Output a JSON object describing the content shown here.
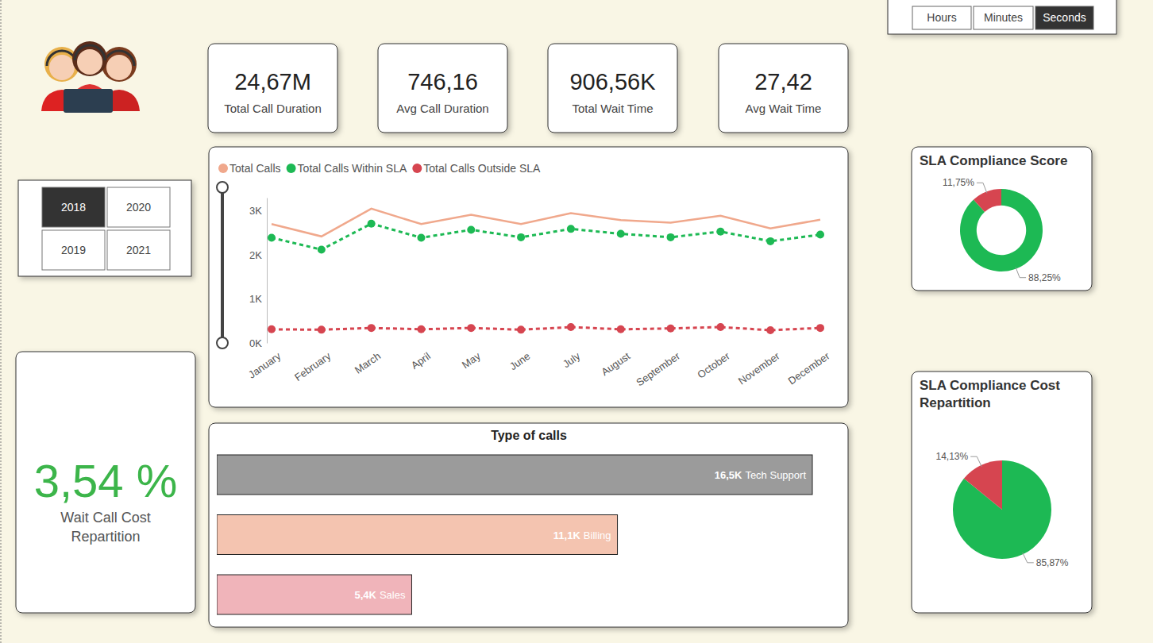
{
  "unit_buttons": {
    "options": [
      "Hours",
      "Minutes",
      "Seconds"
    ],
    "selected": "Seconds"
  },
  "year_slicer": {
    "options": [
      "2018",
      "2019",
      "2020",
      "2021"
    ],
    "selected": "2018"
  },
  "kpis": [
    {
      "value": "24,67M",
      "label": "Total Call Duration"
    },
    {
      "value": "746,16",
      "label": "Avg Call Duration"
    },
    {
      "value": "906,56K",
      "label": "Total Wait Time"
    },
    {
      "value": "27,42",
      "label": "Avg Wait Time"
    }
  ],
  "wait_cost": {
    "value": "3,54 %",
    "label": "Wait Call Cost Repartition"
  },
  "chart_data": [
    {
      "type": "line",
      "categories": [
        "January",
        "February",
        "March",
        "April",
        "May",
        "June",
        "July",
        "August",
        "September",
        "October",
        "November",
        "December"
      ],
      "series": [
        {
          "name": "Total Calls",
          "color": "#f0a88c",
          "line_style": "solid",
          "values": [
            2700,
            2420,
            3050,
            2700,
            2910,
            2700,
            2950,
            2790,
            2730,
            2890,
            2600,
            2800
          ]
        },
        {
          "name": "Total Calls Within SLA",
          "color": "#1db954",
          "line_style": "dashed",
          "marker": "circle",
          "values": [
            2390,
            2120,
            2710,
            2390,
            2570,
            2400,
            2590,
            2480,
            2400,
            2530,
            2310,
            2460
          ]
        },
        {
          "name": "Total Calls Outside SLA",
          "color": "#d64550",
          "line_style": "dashed",
          "marker": "circle",
          "values": [
            310,
            300,
            340,
            310,
            340,
            300,
            360,
            310,
            330,
            360,
            290,
            340
          ]
        }
      ],
      "ylim": [
        0,
        3300
      ],
      "yticks": [
        {
          "value": 0,
          "label": "0K"
        },
        {
          "value": 1000,
          "label": "1K"
        },
        {
          "value": 2000,
          "label": "2K"
        },
        {
          "value": 3000,
          "label": "3K"
        }
      ],
      "grid": false,
      "legend": "top-left"
    },
    {
      "type": "bar",
      "title": "Type of calls",
      "orientation": "horizontal",
      "categories": [
        "Tech Support",
        "Billing",
        "Sales"
      ],
      "values": [
        16500,
        11100,
        5400
      ],
      "value_labels": [
        "16,5K",
        "11,1K",
        "5,4K"
      ],
      "colors": [
        "#9b9b9b",
        "#f4c4b0",
        "#f0b4ba"
      ],
      "xlim": [
        0,
        16500
      ],
      "data_labels": true,
      "tick_labels": false
    },
    {
      "type": "donut",
      "title": "SLA Compliance Score",
      "values": [
        88.25,
        11.75
      ],
      "value_labels": [
        "88,25%",
        "11,75%"
      ],
      "colors": [
        "#1db954",
        "#d64550"
      ],
      "data_labels": true
    },
    {
      "type": "pie",
      "title": "SLA Compliance Cost Repartition",
      "values": [
        85.87,
        14.13
      ],
      "value_labels": [
        "85,87%",
        "14,13%"
      ],
      "colors": [
        "#1db954",
        "#d64550"
      ],
      "data_labels": true
    }
  ]
}
